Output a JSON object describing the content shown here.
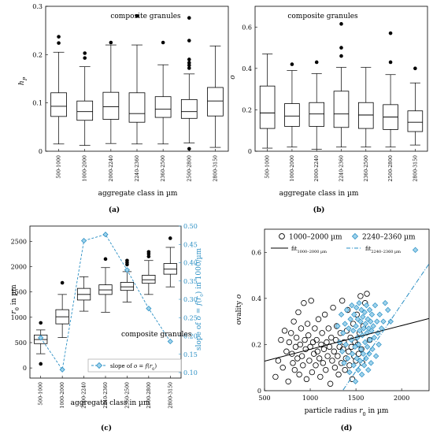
{
  "captions": [
    "(a)",
    "(b)",
    "(c)",
    "(d)"
  ],
  "chart_data": [
    {
      "type": "boxplot",
      "panel": "(a)",
      "annotation": "composite granules",
      "xlabel": "aggregate class in µm",
      "ylabel": "h_P",
      "ylim": [
        0,
        0.3
      ],
      "yticks": [
        0,
        0.1,
        0.2,
        0.3
      ],
      "grid": false,
      "categories": [
        "500-1000",
        "1000-2000",
        "2000-2240",
        "2240-2360",
        "2360-2500",
        "2500-2800",
        "2800-3150"
      ],
      "boxes": [
        {
          "min": 0.015,
          "q1": 0.072,
          "median": 0.093,
          "q3": 0.121,
          "max": 0.205,
          "outliers": [
            0.224,
            0.237
          ]
        },
        {
          "min": 0.012,
          "q1": 0.064,
          "median": 0.082,
          "q3": 0.104,
          "max": 0.175,
          "outliers": [
            0.193,
            0.203
          ]
        },
        {
          "min": 0.016,
          "q1": 0.066,
          "median": 0.092,
          "q3": 0.122,
          "max": 0.22,
          "outliers": [
            0.225
          ]
        },
        {
          "min": 0.015,
          "q1": 0.06,
          "median": 0.078,
          "q3": 0.121,
          "max": 0.22,
          "outliers": [
            0.28
          ]
        },
        {
          "min": 0.015,
          "q1": 0.07,
          "median": 0.087,
          "q3": 0.113,
          "max": 0.179,
          "outliers": [
            0.225
          ]
        },
        {
          "min": 0.017,
          "q1": 0.068,
          "median": 0.082,
          "q3": 0.107,
          "max": 0.16,
          "outliers": [
            0.005,
            0.172,
            0.178,
            0.183,
            0.19,
            0.229,
            0.276
          ]
        },
        {
          "min": 0.008,
          "q1": 0.073,
          "median": 0.104,
          "q3": 0.132,
          "max": 0.218,
          "outliers": []
        }
      ]
    },
    {
      "type": "boxplot",
      "panel": "(b)",
      "annotation": "composite granules",
      "xlabel": "aggregate class in µm",
      "ylabel": "o",
      "ylim": [
        0,
        0.7
      ],
      "yticks": [
        0,
        0.2,
        0.4,
        0.6
      ],
      "grid": false,
      "categories": [
        "500-1000",
        "1000-2000",
        "2000-2240",
        "2240-2360",
        "2360-2500",
        "2500-2800",
        "2800-3150"
      ],
      "boxes": [
        {
          "min": 0.015,
          "q1": 0.11,
          "median": 0.185,
          "q3": 0.315,
          "max": 0.47,
          "outliers": []
        },
        {
          "min": 0.02,
          "q1": 0.12,
          "median": 0.17,
          "q3": 0.23,
          "max": 0.39,
          "outliers": [
            0.42
          ]
        },
        {
          "min": 0.01,
          "q1": 0.12,
          "median": 0.18,
          "q3": 0.235,
          "max": 0.375,
          "outliers": [
            0.43
          ]
        },
        {
          "min": 0.02,
          "q1": 0.115,
          "median": 0.18,
          "q3": 0.29,
          "max": 0.405,
          "outliers": [
            0.46,
            0.5,
            0.615
          ]
        },
        {
          "min": 0.02,
          "q1": 0.11,
          "median": 0.175,
          "q3": 0.235,
          "max": 0.405,
          "outliers": []
        },
        {
          "min": 0.02,
          "q1": 0.105,
          "median": 0.165,
          "q3": 0.225,
          "max": 0.37,
          "outliers": [
            0.43,
            0.57
          ]
        },
        {
          "min": 0.03,
          "q1": 0.095,
          "median": 0.14,
          "q3": 0.195,
          "max": 0.33,
          "outliers": [
            0.4
          ]
        }
      ]
    },
    {
      "type": "boxplot",
      "panel": "(c)",
      "annotation": "composite granules",
      "xlabel": "aggregate class in µm",
      "ylabel": "r_0 in µm",
      "y2label": "slope of o = f(r_0) in 1000/µm",
      "ylim": [
        -200,
        2800
      ],
      "yticks": [
        0,
        500,
        1000,
        1500,
        2000,
        2500
      ],
      "y2lim": [
        0.085,
        0.5
      ],
      "y2ticks": [
        0.1,
        0.15,
        0.2,
        0.25,
        0.3,
        0.35,
        0.4,
        0.45,
        0.5
      ],
      "grid": false,
      "categories": [
        "500-1000",
        "1000-2000",
        "2000-2240",
        "2240-2360",
        "2360-2500",
        "2500-2800",
        "2800-3150"
      ],
      "boxes": [
        {
          "min": 280,
          "q1": 480,
          "median": 560,
          "q3": 650,
          "max": 750,
          "outliers": [
            80,
            890
          ]
        },
        {
          "min": 600,
          "q1": 870,
          "median": 1010,
          "q3": 1150,
          "max": 1450,
          "outliers": [
            1680
          ]
        },
        {
          "min": 1120,
          "q1": 1340,
          "median": 1450,
          "q3": 1570,
          "max": 1800,
          "outliers": []
        },
        {
          "min": 1100,
          "q1": 1450,
          "median": 1540,
          "q3": 1640,
          "max": 1980,
          "outliers": [
            2150
          ]
        },
        {
          "min": 1300,
          "q1": 1530,
          "median": 1600,
          "q3": 1690,
          "max": 1900,
          "outliers": [
            2040,
            2080,
            2120
          ]
        },
        {
          "min": 1450,
          "q1": 1670,
          "median": 1740,
          "q3": 1830,
          "max": 2120,
          "outliers": [
            2200,
            2250,
            2290
          ]
        },
        {
          "min": 1600,
          "q1": 1850,
          "median": 1950,
          "q3": 2060,
          "max": 2380,
          "outliers": [
            2560
          ]
        }
      ],
      "series": [
        {
          "name": "slope of o = f(r_0)",
          "axis": "right",
          "values": [
            0.195,
            0.108,
            0.46,
            0.477,
            0.38,
            0.275,
            0.185
          ]
        }
      ],
      "legend": "bottom-right"
    },
    {
      "type": "scatter",
      "panel": "(d)",
      "xlabel": "particle radius r_0 in µm",
      "ylabel": "ovality o",
      "xlim": [
        500,
        2300
      ],
      "ylim": [
        0,
        0.7
      ],
      "xticks": [
        500,
        1000,
        1500,
        2000
      ],
      "yticks": [
        0,
        0.2,
        0.4,
        0.6
      ],
      "grid": false,
      "legend": "top",
      "series": [
        {
          "name": "1000–2000 µm",
          "marker": "circle",
          "points": [
            [
              620,
              0.06
            ],
            [
              650,
              0.13
            ],
            [
              680,
              0.22
            ],
            [
              700,
              0.1
            ],
            [
              720,
              0.26
            ],
            [
              740,
              0.17
            ],
            [
              760,
              0.04
            ],
            [
              770,
              0.21
            ],
            [
              790,
              0.25
            ],
            [
              800,
              0.16
            ],
            [
              810,
              0.12
            ],
            [
              820,
              0.3
            ],
            [
              830,
              0.09
            ],
            [
              840,
              0.19
            ],
            [
              850,
              0.23
            ],
            [
              860,
              0.14
            ],
            [
              870,
              0.34
            ],
            [
              880,
              0.07
            ],
            [
              890,
              0.2
            ],
            [
              900,
              0.27
            ],
            [
              910,
              0.15
            ],
            [
              920,
              0.11
            ],
            [
              930,
              0.38
            ],
            [
              940,
              0.22
            ],
            [
              950,
              0.18
            ],
            [
              960,
              0.05
            ],
            [
              970,
              0.29
            ],
            [
              980,
              0.24
            ],
            [
              990,
              0.13
            ],
            [
              1000,
              0.19
            ],
            [
              1010,
              0.39
            ],
            [
              1020,
              0.08
            ],
            [
              1030,
              0.21
            ],
            [
              1040,
              0.16
            ],
            [
              1050,
              0.27
            ],
            [
              1060,
              0.11
            ],
            [
              1070,
              0.22
            ],
            [
              1080,
              0.17
            ],
            [
              1090,
              0.31
            ],
            [
              1100,
              0.14
            ],
            [
              1110,
              0.06
            ],
            [
              1120,
              0.2
            ],
            [
              1130,
              0.25
            ],
            [
              1140,
              0.12
            ],
            [
              1150,
              0.18
            ],
            [
              1160,
              0.33
            ],
            [
              1170,
              0.09
            ],
            [
              1180,
              0.21
            ],
            [
              1190,
              0.15
            ],
            [
              1200,
              0.27
            ],
            [
              1210,
              0.19
            ],
            [
              1220,
              0.03
            ],
            [
              1230,
              0.23
            ],
            [
              1240,
              0.13
            ],
            [
              1250,
              0.36
            ],
            [
              1260,
              0.17
            ],
            [
              1270,
              0.1
            ],
            [
              1280,
              0.22
            ],
            [
              1290,
              0.28
            ],
            [
              1300,
              0.15
            ],
            [
              1310,
              0.07
            ],
            [
              1320,
              0.19
            ],
            [
              1330,
              0.25
            ],
            [
              1340,
              0.12
            ],
            [
              1350,
              0.39
            ],
            [
              1360,
              0.18
            ],
            [
              1370,
              0.21
            ],
            [
              1380,
              0.09
            ],
            [
              1390,
              0.14
            ],
            [
              1400,
              0.26
            ],
            [
              1410,
              0.35
            ],
            [
              1420,
              0.17
            ],
            [
              1430,
              0.11
            ],
            [
              1440,
              0.23
            ],
            [
              1450,
              0.19
            ],
            [
              1460,
              0.05
            ],
            [
              1470,
              0.29
            ],
            [
              1480,
              0.15
            ],
            [
              1490,
              0.21
            ],
            [
              1500,
              0.13
            ],
            [
              1510,
              0.33
            ],
            [
              1520,
              0.2
            ],
            [
              1530,
              0.16
            ],
            [
              1540,
              0.25
            ],
            [
              1550,
              0.41
            ],
            [
              1560,
              0.18
            ],
            [
              1570,
              0.12
            ],
            [
              1580,
              0.28
            ],
            [
              1600,
              0.38
            ],
            [
              1620,
              0.42
            ],
            [
              1650,
              0.22
            ]
          ]
        },
        {
          "name": "2240–2360 µm",
          "marker": "diamond",
          "points": [
            [
              1300,
              0.28
            ],
            [
              1320,
              0.21
            ],
            [
              1340,
              0.33
            ],
            [
              1350,
              0.17
            ],
            [
              1360,
              0.25
            ],
            [
              1370,
              0.12
            ],
            [
              1380,
              0.29
            ],
            [
              1390,
              0.2
            ],
            [
              1400,
              0.35
            ],
            [
              1410,
              0.14
            ],
            [
              1420,
              0.27
            ],
            [
              1430,
              0.08
            ],
            [
              1440,
              0.31
            ],
            [
              1450,
              0.22
            ],
            [
              1455,
              0.37
            ],
            [
              1460,
              0.16
            ],
            [
              1470,
              0.26
            ],
            [
              1475,
              0.11
            ],
            [
              1480,
              0.33
            ],
            [
              1490,
              0.19
            ],
            [
              1495,
              0.04
            ],
            [
              1500,
              0.28
            ],
            [
              1505,
              0.36
            ],
            [
              1510,
              0.14
            ],
            [
              1515,
              0.23
            ],
            [
              1520,
              0.31
            ],
            [
              1525,
              0.09
            ],
            [
              1530,
              0.2
            ],
            [
              1535,
              0.38
            ],
            [
              1540,
              0.26
            ],
            [
              1545,
              0.13
            ],
            [
              1550,
              0.3
            ],
            [
              1555,
              0.18
            ],
            [
              1560,
              0.35
            ],
            [
              1565,
              0.07
            ],
            [
              1570,
              0.24
            ],
            [
              1575,
              0.32
            ],
            [
              1580,
              0.16
            ],
            [
              1585,
              0.27
            ],
            [
              1590,
              0.11
            ],
            [
              1595,
              0.34
            ],
            [
              1600,
              0.21
            ],
            [
              1605,
              0.29
            ],
            [
              1610,
              0.14
            ],
            [
              1615,
              0.37
            ],
            [
              1620,
              0.25
            ],
            [
              1625,
              0.19
            ],
            [
              1630,
              0.31
            ],
            [
              1635,
              0.09
            ],
            [
              1640,
              0.27
            ],
            [
              1645,
              0.16
            ],
            [
              1650,
              0.35
            ],
            [
              1655,
              0.22
            ],
            [
              1660,
              0.3
            ],
            [
              1665,
              0.12
            ],
            [
              1670,
              0.26
            ],
            [
              1675,
              0.33
            ],
            [
              1680,
              0.18
            ],
            [
              1690,
              0.28
            ],
            [
              1700,
              0.23
            ],
            [
              1710,
              0.37
            ],
            [
              1720,
              0.15
            ],
            [
              1730,
              0.3
            ],
            [
              1740,
              0.25
            ],
            [
              1750,
              0.2
            ],
            [
              1760,
              0.33
            ],
            [
              1780,
              0.27
            ],
            [
              1800,
              0.3
            ],
            [
              1820,
              0.38
            ],
            [
              1850,
              0.35
            ],
            [
              1880,
              0.3
            ],
            [
              2150,
              0.61
            ]
          ]
        }
      ],
      "fits": [
        {
          "name": "fit_1000–2000 µm",
          "style": "solid",
          "x": [
            500,
            2300
          ],
          "y": [
            0.128,
            0.313
          ]
        },
        {
          "name": "fit_2240–2360 µm",
          "style": "dashdot",
          "x": [
            1200,
            2300
          ],
          "y": [
            -0.09,
            0.55
          ]
        }
      ]
    }
  ]
}
